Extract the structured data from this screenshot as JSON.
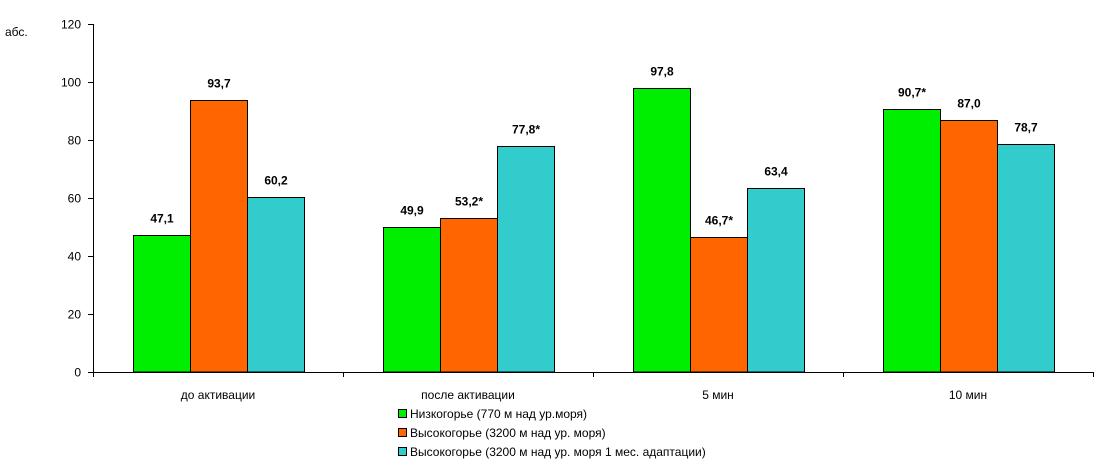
{
  "chart_data": {
    "type": "bar",
    "ylabel": "абс.",
    "ylim": [
      0,
      120
    ],
    "yticks": [
      0,
      20,
      40,
      60,
      80,
      100,
      120
    ],
    "categories": [
      "до активации",
      "после активации",
      "5 мин",
      "10 мин"
    ],
    "series": [
      {
        "name": "Низкогорье (770 м над ур.моря)",
        "color": "#00ee00",
        "values": [
          47.1,
          49.9,
          97.8,
          90.7
        ],
        "labels": [
          "47,1",
          "49,9",
          "97,8",
          "90,7*"
        ]
      },
      {
        "name": "Высокогорье (3200 м над ур. моря)",
        "color": "#ff6600",
        "values": [
          93.7,
          53.2,
          46.7,
          87.0
        ],
        "labels": [
          "93,7",
          "53,2*",
          "46,7*",
          "87,0"
        ]
      },
      {
        "name": "Высокогорье (3200 м над ур. моря 1 мес. адаптации)",
        "color": "#33cccc",
        "values": [
          60.2,
          77.8,
          63.4,
          78.7
        ],
        "labels": [
          "60,2",
          "77,8*",
          "63,4",
          "78,7"
        ]
      }
    ],
    "legend_position": "bottom-center",
    "grid": false
  }
}
